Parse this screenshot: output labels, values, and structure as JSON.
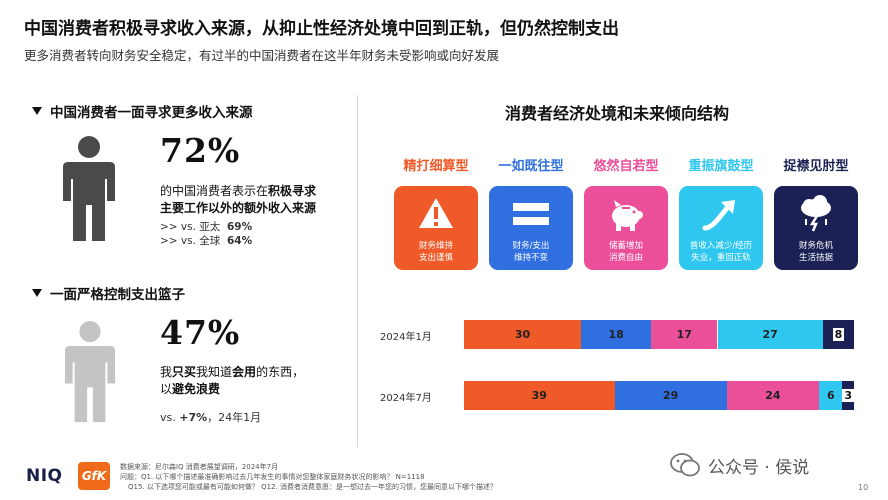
{
  "header": {
    "title": "中国消费者积极寻求收入来源，从抑止性经济处境中回到正轨，但仍然控制支出",
    "subtitle": "更多消费者转向财务安全稳定，有过半的中国消费者在这半年财务未受影响或向好发展"
  },
  "left": {
    "section1": {
      "heading": "中国消费者一面寻求更多收入来源",
      "percent": "72%",
      "desc_line1_pre": "的中国消费者表示在",
      "desc_line1_bold": "积极寻求",
      "desc_line2_bold": "主要工作以外的额外收入来源",
      "cmp1_label": ">> vs. 亚太",
      "cmp1_value": "69%",
      "cmp2_label": ">> vs. 全球",
      "cmp2_value": "64%"
    },
    "section2": {
      "heading": "一面严格控制支出篮子",
      "percent": "47%",
      "desc_line1_pre": "我",
      "desc_line1_bold1": "只买",
      "desc_line1_mid": "我知道",
      "desc_line1_bold2": "会用",
      "desc_line1_post": "的东西，",
      "desc_line2_pre": "以",
      "desc_line2_bold": "避免浪费",
      "cmp_pre": "vs. ",
      "cmp_bold": "+7%",
      "cmp_post": "，24年1月"
    }
  },
  "footnotes": {
    "line1": "数据来源：尼尔森IQ 消费者展望调研，2024年7月",
    "line2": "问题：Q1. 以下哪个描述最准确影响过去几年发生的事情对您整体家庭财务状况的影响？ N=1118",
    "line3": "Q15. 以下选项您可能或最有可能如何做？ Q12. 消费者消费意愿：是一想过去一年您的习惯，您最同意以下哪个描述？"
  },
  "logos": {
    "niq": "NIQ",
    "gfk": "GfK"
  },
  "watermark": {
    "text": "公众号 · 侯说"
  },
  "page_number": "10",
  "chart_data": {
    "type": "bar",
    "orientation": "horizontal",
    "stacked": true,
    "title": "消费者经济处境和未来倾向结构",
    "categories": [
      "2024年1月",
      "2024年7月"
    ],
    "series": [
      {
        "name": "精打细算型",
        "color": "#f05a28",
        "values": [
          30,
          39
        ],
        "card_text": [
          "财务维持",
          "支出谨慎"
        ],
        "icon": "warning-icon"
      },
      {
        "name": "一如既往型",
        "color": "#2f6fe0",
        "values": [
          18,
          29
        ],
        "card_text": [
          "财务/支出",
          "维持不变"
        ],
        "icon": "equals-icon"
      },
      {
        "name": "悠然自若型",
        "color": "#ec4f9a",
        "values": [
          17,
          24
        ],
        "card_text": [
          "储蓄增加",
          "消费自由"
        ],
        "icon": "piggy-bank-icon"
      },
      {
        "name": "重振旗鼓型",
        "color": "#2fc7ef",
        "values": [
          27,
          6
        ],
        "card_text": [
          "曾收入减少/经历",
          "失业，重回正轨"
        ],
        "icon": "trend-up-arrow-icon"
      },
      {
        "name": "捉襟见肘型",
        "color": "#1b2154",
        "values": [
          8,
          3
        ],
        "card_text": [
          "财务危机",
          "生活拮据"
        ],
        "icon": "storm-cloud-icon"
      }
    ]
  }
}
